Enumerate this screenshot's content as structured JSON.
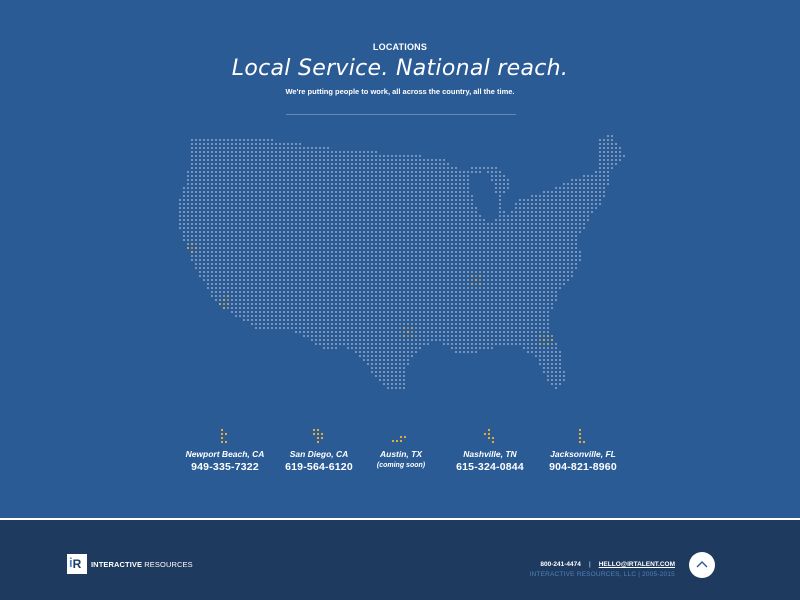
{
  "section": {
    "eyebrow": "LOCATIONS",
    "headline": "Local Service. National reach.",
    "subhead": "We're putting people to work, all across the country, all the time."
  },
  "map": {
    "dot_color": "#9bb4d4",
    "highlight_color": "#f2b632"
  },
  "locations": [
    {
      "city": "Newport Beach, CA",
      "phone": "949-335-7322",
      "note": ""
    },
    {
      "city": "San Diego, CA",
      "phone": "619-564-6120",
      "note": ""
    },
    {
      "city": "Austin, TX",
      "phone": "",
      "note": "(coming soon)"
    },
    {
      "city": "Nashville, TN",
      "phone": "615-324-0844",
      "note": ""
    },
    {
      "city": "Jacksonville, FL",
      "phone": "904-821-8960",
      "note": ""
    }
  ],
  "footer": {
    "logo_mark": "R",
    "logo_i": "i",
    "company_bold": "INTERACTIVE",
    "company_light": " RESOURCES",
    "phone": "800-241-4474",
    "separator": "|",
    "email": "HELLO@IRTALENT.COM",
    "copyright": "INTERACTIVE RESOURCES, LLC | 2005-2015",
    "back_to_top_icon": "chevron-up-icon"
  },
  "colors": {
    "background": "#2b5b94",
    "footer": "#1e3a5f",
    "accent": "#f2b632"
  }
}
